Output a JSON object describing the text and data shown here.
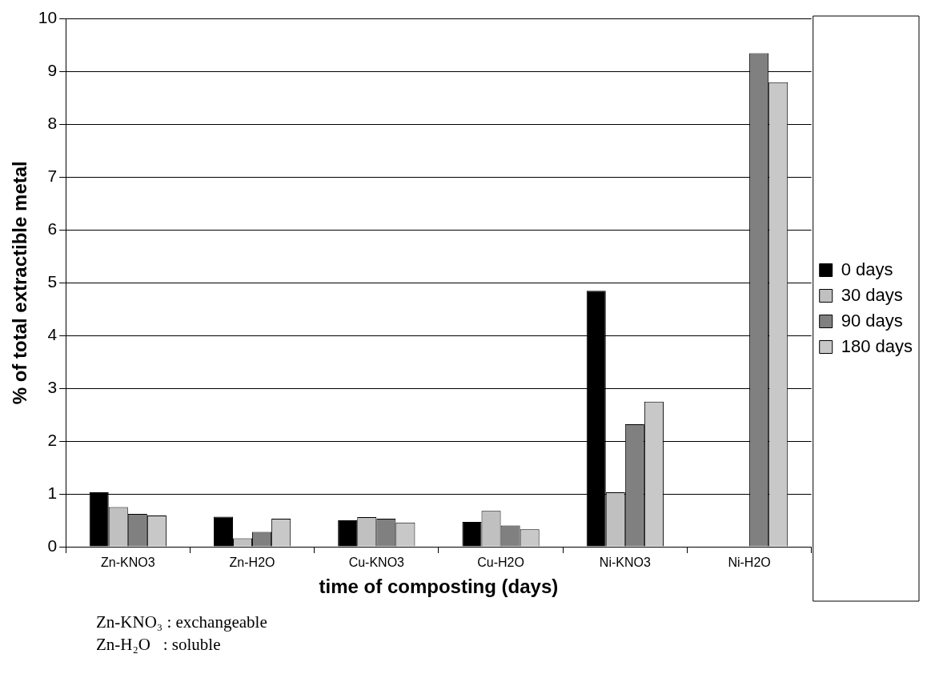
{
  "chart_data": {
    "type": "bar",
    "xlabel": "time of composting (days)",
    "ylabel": "% of total extractible metal",
    "categories": [
      "Zn-KNO3",
      "Zn-H2O",
      "Cu-KNO3",
      "Cu-H2O",
      "Ni-KNO3",
      "Ni-H2O"
    ],
    "series": [
      {
        "name": "0 days",
        "color": "#000000",
        "values": [
          1.03,
          0.57,
          0.5,
          0.47,
          4.85,
          null
        ]
      },
      {
        "name": "30 days",
        "color": "#c0c0c0",
        "values": [
          0.75,
          0.16,
          0.56,
          0.68,
          1.03,
          null
        ]
      },
      {
        "name": "90 days",
        "color": "#808080",
        "values": [
          0.62,
          0.28,
          0.53,
          0.4,
          2.32,
          9.35
        ]
      },
      {
        "name": "180 days",
        "color": "#c8c8c8",
        "values": [
          0.59,
          0.53,
          0.46,
          0.33,
          2.75,
          8.8
        ]
      }
    ],
    "ylim": [
      0,
      10
    ],
    "yticks": [
      0,
      1,
      2,
      3,
      4,
      5,
      6,
      7,
      8,
      9,
      10
    ],
    "grid": "y",
    "legend": "right",
    "annotations": [
      "Zn-KNO₃ : exchangeable",
      "Zn-H₂O   : soluble"
    ]
  }
}
